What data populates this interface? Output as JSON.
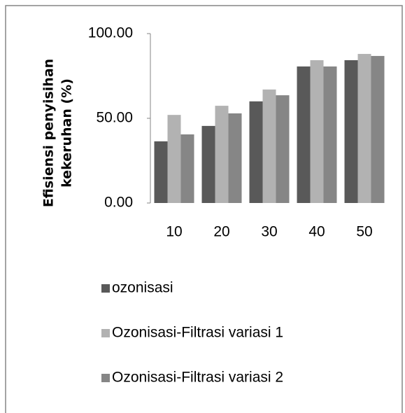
{
  "chart_data": {
    "type": "bar",
    "y_label": [
      "Efisiensi penyisihan",
      "kekeruhan (%)"
    ],
    "categories": [
      "10",
      "20",
      "30",
      "40",
      "50"
    ],
    "series": [
      {
        "name": "ozonisasi",
        "color": "#595959",
        "values": [
          36.4,
          45.5,
          60,
          80.6,
          84.3
        ]
      },
      {
        "name": "Ozonisasi-Filtrasi variasi 1",
        "color": "#b2b2b2",
        "values": [
          52,
          57.4,
          67,
          84.3,
          88
        ]
      },
      {
        "name": "Ozonisasi-Filtrasi variasi 2",
        "color": "#868686",
        "values": [
          40.5,
          52.9,
          63.6,
          80.6,
          86.8
        ]
      }
    ],
    "ylim": [
      0,
      100
    ],
    "yticks": [
      {
        "value": 0,
        "label": "0.00"
      },
      {
        "value": 50,
        "label": "50.00"
      },
      {
        "value": 100,
        "label": "100.00"
      }
    ],
    "legend": "bottom"
  }
}
